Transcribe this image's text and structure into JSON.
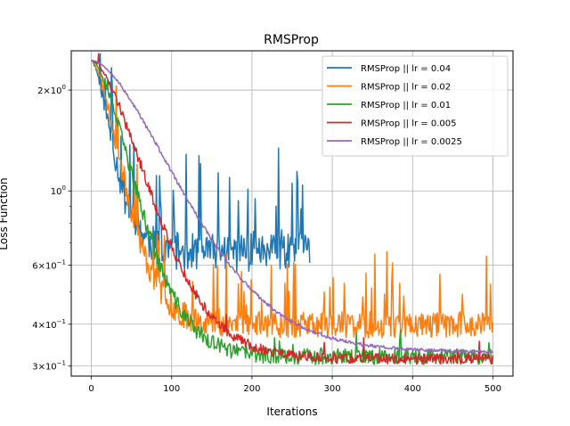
{
  "chart_data": {
    "type": "line",
    "title": "RMSProp",
    "xlabel": "Iterations",
    "ylabel": "Loss Function",
    "xlim": [
      -25,
      525
    ],
    "ylim": [
      0.28,
      2.62
    ],
    "yscale": "log",
    "grid": true,
    "legend_position": "top-right",
    "x_ticks": [
      0,
      100,
      200,
      300,
      400,
      500
    ],
    "x_tick_labels": [
      "0",
      "100",
      "200",
      "300",
      "400",
      "500"
    ],
    "y_ticks": [
      2.0,
      1.0,
      0.6,
      0.4,
      0.3
    ],
    "y_tick_labels": [
      {
        "base": "2",
        "exp": "0"
      },
      {
        "base": "10",
        "exp": "0"
      },
      {
        "base": "6",
        "exp": "−1"
      },
      {
        "base": "4",
        "exp": "−1"
      },
      {
        "base": "3",
        "exp": "−1"
      }
    ],
    "y_minor_ticks": [
      0.5,
      0.7,
      0.8,
      0.9
    ],
    "series": [
      {
        "name": "RMSProp || lr = 0.04",
        "color": "#1f77b4",
        "x_end": 272,
        "half_life": 22,
        "floor": 0.66,
        "noise": 0.13,
        "spike_rate": 0.16,
        "spike_amp": 0.42,
        "seed": 11
      },
      {
        "name": "RMSProp || lr = 0.02",
        "color": "#ff7f0e",
        "x_end": 500,
        "half_life": 30,
        "floor": 0.4,
        "noise": 0.09,
        "spike_rate": 0.1,
        "spike_amp": 0.3,
        "seed": 23
      },
      {
        "name": "RMSProp || lr = 0.01",
        "color": "#2ca02c",
        "x_end": 500,
        "half_life": 40,
        "floor": 0.32,
        "noise": 0.055,
        "spike_rate": 0.03,
        "spike_amp": 0.12,
        "seed": 37
      },
      {
        "name": "RMSProp || lr = 0.005",
        "color": "#d62728",
        "x_end": 500,
        "half_life": 52,
        "floor": 0.315,
        "noise": 0.035,
        "spike_rate": 0.02,
        "spike_amp": 0.08,
        "seed": 41
      },
      {
        "name": "RMSProp || lr = 0.0025",
        "color": "#9467bd",
        "x_end": 500,
        "half_life": 80,
        "floor": 0.33,
        "noise": 0.012,
        "spike_rate": 0.0,
        "spike_amp": 0.0,
        "seed": 53
      }
    ],
    "start_value": 2.45
  }
}
